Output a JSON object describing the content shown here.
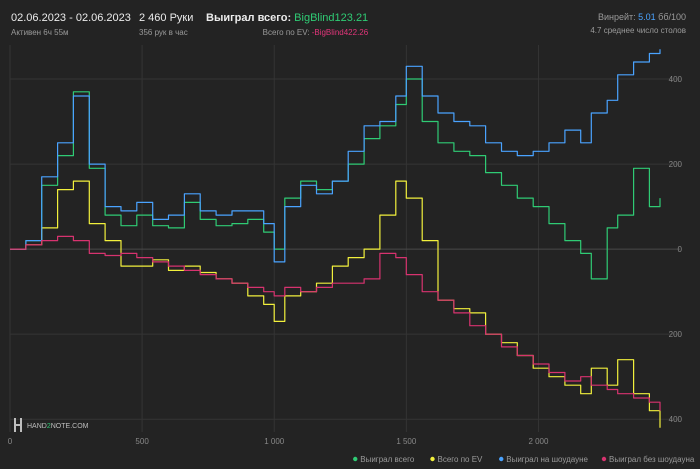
{
  "header": {
    "date_range": "02.06.2023 - 02.06.2023",
    "active": "Активен 6ч 55м",
    "hands": "2 460 Руки",
    "hands_per_hour": "356 рук в час",
    "won_label": "Выиграл всего:",
    "won_value": "BigBlind123.21",
    "ev_label": "Всего по EV:",
    "ev_value": "-BigBlind422.26",
    "winrate_label": "Винрейт:",
    "winrate_value": "5.01",
    "winrate_unit": "бб/100",
    "avg_tables": "4.7 среднее число столов"
  },
  "logo": {
    "text_left": "HAND",
    "text_mid": "2",
    "text_right": "NOTE.COM"
  },
  "chart_data": {
    "type": "line",
    "xlim": [
      0,
      2460
    ],
    "ylim": [
      -430,
      480
    ],
    "x_ticks": [
      0,
      500,
      1000,
      1500,
      2000
    ],
    "x_tick_labels": [
      "0",
      "500",
      "1 000",
      "1 500",
      "2 000"
    ],
    "y_ticks": [
      400,
      200,
      0,
      -200,
      -400
    ],
    "y_tick_labels": [
      "400",
      "200",
      "0",
      "200",
      "400"
    ],
    "grid": true,
    "legend_position": "bottom-right",
    "series": [
      {
        "name": "Выиграл всего",
        "color": "#2fcb74",
        "x": [
          0,
          60,
          120,
          180,
          240,
          300,
          360,
          420,
          480,
          540,
          600,
          660,
          720,
          780,
          840,
          900,
          960,
          1000,
          1040,
          1100,
          1160,
          1220,
          1280,
          1340,
          1400,
          1460,
          1500,
          1560,
          1620,
          1680,
          1740,
          1800,
          1860,
          1920,
          1980,
          2040,
          2100,
          2160,
          2200,
          2260,
          2300,
          2360,
          2420,
          2460
        ],
        "y": [
          0,
          20,
          150,
          220,
          370,
          190,
          80,
          55,
          80,
          55,
          50,
          110,
          70,
          55,
          60,
          70,
          40,
          0,
          120,
          160,
          140,
          160,
          200,
          260,
          290,
          340,
          400,
          300,
          250,
          230,
          220,
          180,
          150,
          120,
          100,
          60,
          20,
          -10,
          -70,
          50,
          80,
          190,
          100,
          120
        ]
      },
      {
        "name": "Всего по EV",
        "color": "#f2f03c",
        "x": [
          0,
          60,
          120,
          180,
          240,
          300,
          360,
          420,
          480,
          540,
          600,
          660,
          720,
          780,
          840,
          900,
          960,
          1000,
          1040,
          1100,
          1160,
          1220,
          1280,
          1340,
          1400,
          1460,
          1500,
          1560,
          1620,
          1680,
          1740,
          1800,
          1860,
          1920,
          1980,
          2040,
          2100,
          2160,
          2200,
          2260,
          2300,
          2360,
          2420,
          2460
        ],
        "y": [
          0,
          10,
          50,
          140,
          160,
          60,
          20,
          -40,
          -40,
          -25,
          -50,
          -40,
          -55,
          -70,
          -80,
          -110,
          -130,
          -170,
          -110,
          -100,
          -80,
          -40,
          -20,
          0,
          80,
          160,
          120,
          20,
          -120,
          -140,
          -150,
          -200,
          -220,
          -250,
          -280,
          -300,
          -320,
          -340,
          -280,
          -320,
          -260,
          -340,
          -380,
          -420
        ]
      },
      {
        "name": "Выиграл на шоудауне",
        "color": "#4aa3ff",
        "x": [
          0,
          60,
          120,
          180,
          240,
          300,
          360,
          420,
          480,
          540,
          600,
          660,
          720,
          780,
          840,
          900,
          960,
          1000,
          1040,
          1100,
          1160,
          1220,
          1280,
          1340,
          1400,
          1460,
          1500,
          1560,
          1620,
          1680,
          1740,
          1800,
          1860,
          1920,
          1980,
          2040,
          2100,
          2160,
          2200,
          2260,
          2300,
          2360,
          2420,
          2460
        ],
        "y": [
          0,
          20,
          170,
          250,
          360,
          200,
          100,
          90,
          110,
          70,
          80,
          130,
          90,
          80,
          90,
          90,
          60,
          -30,
          100,
          150,
          130,
          160,
          230,
          290,
          300,
          360,
          430,
          360,
          320,
          300,
          290,
          250,
          230,
          220,
          230,
          250,
          280,
          250,
          320,
          350,
          410,
          440,
          460,
          470
        ]
      },
      {
        "name": "Выиграл без шоудауна",
        "color": "#d7336f",
        "x": [
          0,
          60,
          120,
          180,
          240,
          300,
          360,
          420,
          480,
          540,
          600,
          660,
          720,
          780,
          840,
          900,
          960,
          1000,
          1040,
          1100,
          1160,
          1220,
          1280,
          1340,
          1400,
          1460,
          1500,
          1560,
          1620,
          1680,
          1740,
          1800,
          1860,
          1920,
          1980,
          2040,
          2100,
          2160,
          2200,
          2260,
          2300,
          2360,
          2420,
          2460
        ],
        "y": [
          0,
          10,
          20,
          30,
          20,
          -10,
          -15,
          -10,
          -20,
          -30,
          -40,
          -50,
          -60,
          -70,
          -80,
          -90,
          -100,
          -110,
          -90,
          -100,
          -90,
          -80,
          -80,
          -70,
          -10,
          -20,
          -60,
          -100,
          -120,
          -150,
          -180,
          -200,
          -230,
          -250,
          -270,
          -290,
          -310,
          -300,
          -320,
          -330,
          -340,
          -350,
          -360,
          -380
        ]
      }
    ]
  }
}
